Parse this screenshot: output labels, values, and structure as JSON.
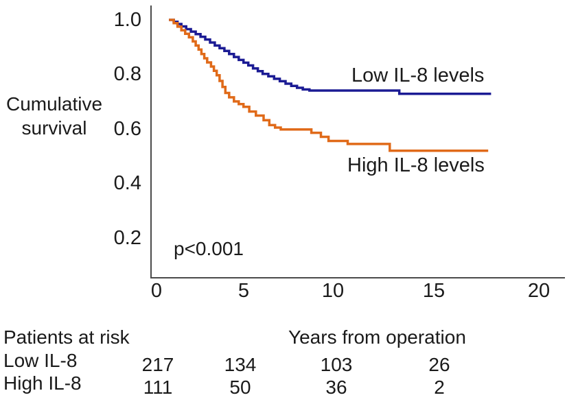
{
  "figure": {
    "ylabel_line1": "Cumulative",
    "ylabel_line2": "survival",
    "pvalue": "p<0.001",
    "low_series_label": "Low IL-8 levels",
    "high_series_label": "High IL-8 levels"
  },
  "chart_data": {
    "type": "line",
    "subtype": "kaplan-meier-step",
    "title": "",
    "xlabel": "Years from operation",
    "ylabel": "Cumulative survival",
    "xlim": [
      0,
      21.4
    ],
    "ylim": [
      0.05,
      1.05
    ],
    "x_ticks": [
      "0",
      "5",
      "10",
      "15",
      "20"
    ],
    "y_ticks": [
      "1.0",
      "0.8",
      "0.6",
      "0.4",
      "0.2"
    ],
    "grid": false,
    "legend_position": "inline-labels",
    "annotation": "p<0.001",
    "series": [
      {
        "name": "Low IL-8 levels",
        "color": "#1b1b94",
        "steps": [
          [
            0.65,
            1.0
          ],
          [
            0.9,
            0.993
          ],
          [
            1.1,
            0.985
          ],
          [
            1.3,
            0.976
          ],
          [
            1.55,
            0.966
          ],
          [
            1.8,
            0.957
          ],
          [
            2.05,
            0.948
          ],
          [
            2.3,
            0.938
          ],
          [
            2.55,
            0.928
          ],
          [
            2.8,
            0.917
          ],
          [
            3.05,
            0.906
          ],
          [
            3.3,
            0.896
          ],
          [
            3.55,
            0.886
          ],
          [
            3.8,
            0.875
          ],
          [
            4.05,
            0.864
          ],
          [
            4.3,
            0.853
          ],
          [
            4.55,
            0.843
          ],
          [
            4.8,
            0.833
          ],
          [
            5.05,
            0.822
          ],
          [
            5.3,
            0.812
          ],
          [
            5.55,
            0.802
          ],
          [
            5.85,
            0.793
          ],
          [
            6.15,
            0.784
          ],
          [
            6.45,
            0.775
          ],
          [
            6.75,
            0.766
          ],
          [
            7.05,
            0.758
          ],
          [
            7.35,
            0.751
          ],
          [
            7.65,
            0.745
          ],
          [
            8.0,
            0.741
          ],
          [
            12.7,
            0.729
          ],
          [
            17.5,
            0.729
          ]
        ]
      },
      {
        "name": "High IL-8 levels",
        "color": "#e06a19",
        "steps": [
          [
            0.65,
            1.0
          ],
          [
            0.9,
            0.988
          ],
          [
            1.1,
            0.975
          ],
          [
            1.3,
            0.962
          ],
          [
            1.5,
            0.949
          ],
          [
            1.7,
            0.936
          ],
          [
            1.9,
            0.921
          ],
          [
            2.05,
            0.906
          ],
          [
            2.2,
            0.891
          ],
          [
            2.35,
            0.875
          ],
          [
            2.5,
            0.859
          ],
          [
            2.65,
            0.844
          ],
          [
            2.85,
            0.829
          ],
          [
            3.0,
            0.813
          ],
          [
            3.15,
            0.797
          ],
          [
            3.3,
            0.776
          ],
          [
            3.45,
            0.754
          ],
          [
            3.6,
            0.732
          ],
          [
            3.8,
            0.716
          ],
          [
            4.05,
            0.701
          ],
          [
            4.3,
            0.691
          ],
          [
            4.55,
            0.681
          ],
          [
            4.85,
            0.664
          ],
          [
            5.2,
            0.649
          ],
          [
            5.6,
            0.632
          ],
          [
            5.9,
            0.614
          ],
          [
            6.2,
            0.605
          ],
          [
            6.5,
            0.598
          ],
          [
            8.1,
            0.586
          ],
          [
            8.6,
            0.571
          ],
          [
            9.0,
            0.556
          ],
          [
            10.0,
            0.545
          ],
          [
            12.2,
            0.52
          ],
          [
            17.35,
            0.52
          ]
        ]
      }
    ]
  },
  "risk_table": {
    "title": "Patients at risk",
    "x_axis_title": "Years from operation",
    "rows": [
      {
        "label": "Low IL-8",
        "values": [
          "217",
          "134",
          "103",
          "26"
        ]
      },
      {
        "label": "High IL-8",
        "values": [
          "111",
          "50",
          "36",
          "2"
        ]
      }
    ]
  },
  "colors": {
    "low_curve": "#1b1b94",
    "high_curve": "#e06a19",
    "axis": "#4a4a4a",
    "text": "#1a1a1a",
    "background": "#ffffff"
  }
}
